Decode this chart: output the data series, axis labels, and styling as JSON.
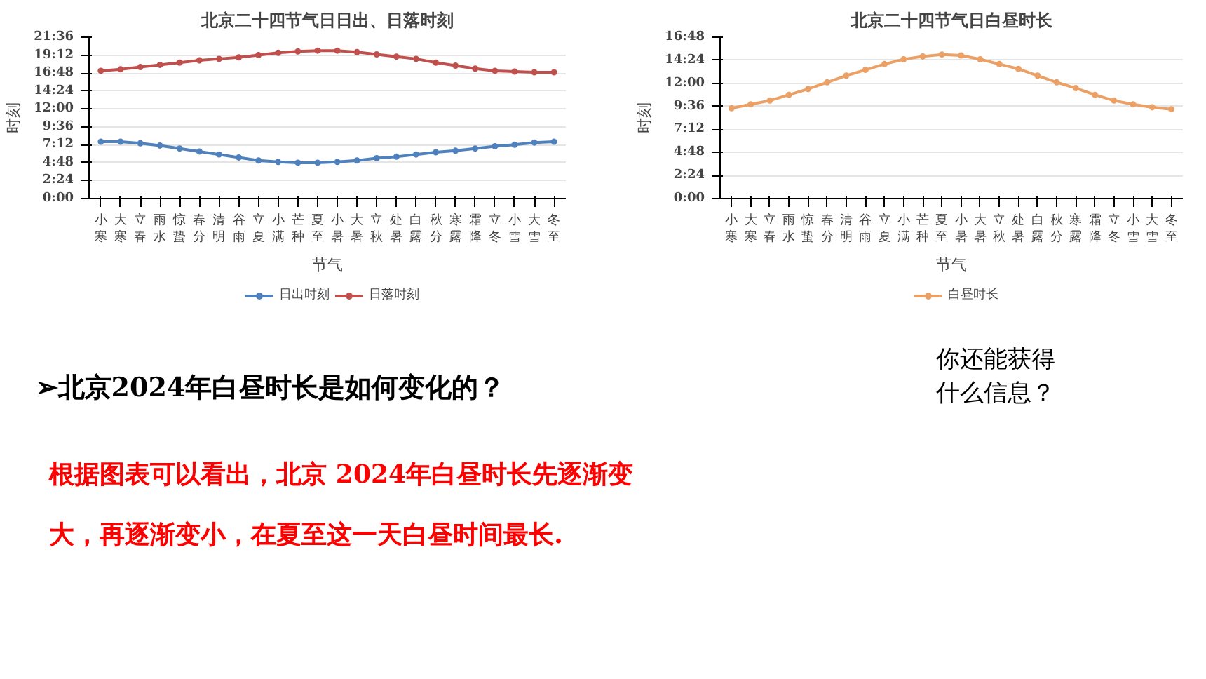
{
  "chart_data": [
    {
      "type": "line",
      "title": "北京二十四节气日日出、日落时刻",
      "ylabel": "时刻",
      "xlabel": "节气",
      "categories": [
        "小寒",
        "大寒",
        "立春",
        "雨水",
        "惊蛰",
        "春分",
        "清明",
        "谷雨",
        "立夏",
        "小满",
        "芒种",
        "夏至",
        "小暑",
        "大暑",
        "立秋",
        "处暑",
        "白露",
        "秋分",
        "寒露",
        "霜降",
        "立冬",
        "小雪",
        "大雪",
        "冬至"
      ],
      "series": [
        {
          "name": "日出时刻",
          "color": "#4f81bd",
          "values": [
            7.6,
            7.6,
            7.4,
            7.1,
            6.7,
            6.3,
            5.9,
            5.5,
            5.1,
            4.9,
            4.8,
            4.8,
            4.9,
            5.1,
            5.4,
            5.6,
            5.9,
            6.2,
            6.4,
            6.7,
            7.0,
            7.2,
            7.5,
            7.6
          ]
        },
        {
          "name": "日落时刻",
          "color": "#c0504d",
          "values": [
            17.1,
            17.3,
            17.6,
            17.9,
            18.2,
            18.5,
            18.7,
            18.9,
            19.2,
            19.5,
            19.7,
            19.8,
            19.8,
            19.6,
            19.3,
            19.0,
            18.7,
            18.2,
            17.8,
            17.4,
            17.1,
            17.0,
            16.9,
            16.9
          ]
        }
      ],
      "ylim": [
        0,
        21.6
      ],
      "yticks": [
        {
          "value": 0,
          "label": "0:00"
        },
        {
          "value": 2.4,
          "label": "2:24"
        },
        {
          "value": 4.8,
          "label": "4:48"
        },
        {
          "value": 7.2,
          "label": "7:12"
        },
        {
          "value": 9.6,
          "label": "9:36"
        },
        {
          "value": 12,
          "label": "12:00"
        },
        {
          "value": 14.4,
          "label": "14:24"
        },
        {
          "value": 16.8,
          "label": "16:48"
        },
        {
          "value": 19.2,
          "label": "19:12"
        },
        {
          "value": 21.6,
          "label": "21:36"
        }
      ],
      "grid": "y",
      "legend": "bottom",
      "marker": "circle",
      "line_style": "solid"
    },
    {
      "type": "line",
      "title": "北京二十四节气日白昼时长",
      "ylabel": "时刻",
      "xlabel": "节气",
      "categories": [
        "小寒",
        "大寒",
        "立春",
        "雨水",
        "惊蛰",
        "春分",
        "清明",
        "谷雨",
        "立夏",
        "小满",
        "芒种",
        "夏至",
        "小暑",
        "大暑",
        "立秋",
        "处暑",
        "白露",
        "秋分",
        "寒露",
        "霜降",
        "立冬",
        "小雪",
        "大雪",
        "冬至"
      ],
      "series": [
        {
          "name": "白昼时长",
          "color": "#eba066",
          "values": [
            9.4,
            9.8,
            10.2,
            10.8,
            11.4,
            12.1,
            12.8,
            13.4,
            14.0,
            14.5,
            14.8,
            15.0,
            14.9,
            14.5,
            14.0,
            13.5,
            12.8,
            12.1,
            11.5,
            10.8,
            10.2,
            9.8,
            9.5,
            9.3
          ]
        }
      ],
      "ylim": [
        0,
        16.8
      ],
      "yticks": [
        {
          "value": 0,
          "label": "0:00"
        },
        {
          "value": 2.4,
          "label": "2:24"
        },
        {
          "value": 4.8,
          "label": "4:48"
        },
        {
          "value": 7.2,
          "label": "7:12"
        },
        {
          "value": 9.6,
          "label": "9:36"
        },
        {
          "value": 12,
          "label": "12:00"
        },
        {
          "value": 14.4,
          "label": "14:24"
        },
        {
          "value": 16.8,
          "label": "16:48"
        }
      ],
      "grid": "y",
      "legend": "bottom",
      "marker": "circle",
      "line_style": "solid"
    },
    {
      "type": "other",
      "annotations": [
        "➢北京2024年白昼时长是如何变化的？",
        "根据图表可以看出，北京 2024年白昼时长先逐渐变",
        "大，再逐渐变小，在夏至这一天白昼时间最长.",
        "你还能获得什么信息？"
      ]
    }
  ]
}
